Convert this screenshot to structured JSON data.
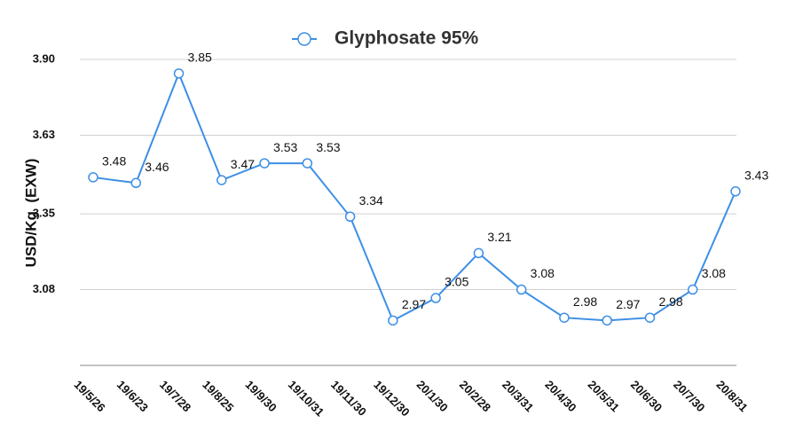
{
  "chart_data": {
    "type": "line",
    "ylabel": "USD/Kg  (EXW)",
    "categories": [
      "19/5/26",
      "19/6/23",
      "19/7/28",
      "19/8/25",
      "19/9/30",
      "19/10/31",
      "19/11/30",
      "19/12/30",
      "20/1/30",
      "20/2/28",
      "20/3/31",
      "20/4/30",
      "20/5/31",
      "20/6/30",
      "20/7/30",
      "20/8/31"
    ],
    "series": [
      {
        "name": "Glyphosate 95%",
        "color": "#3d8fe6",
        "values": [
          3.48,
          3.46,
          3.85,
          3.47,
          3.53,
          3.53,
          3.34,
          2.97,
          3.05,
          3.21,
          3.08,
          2.98,
          2.97,
          2.98,
          3.08,
          3.43
        ]
      }
    ],
    "ylim": [
      2.81,
      3.9
    ],
    "yticks": [
      3.08,
      3.35,
      3.63,
      {
        "value": 3.9,
        "label": "3.90"
      }
    ],
    "grid": true,
    "legend": "top"
  }
}
